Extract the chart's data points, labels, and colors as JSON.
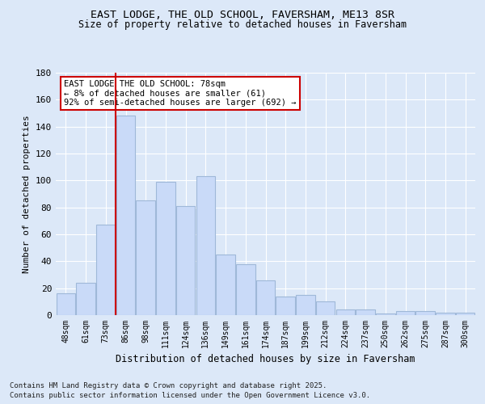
{
  "title_line1": "EAST LODGE, THE OLD SCHOOL, FAVERSHAM, ME13 8SR",
  "title_line2": "Size of property relative to detached houses in Faversham",
  "xlabel": "Distribution of detached houses by size in Faversham",
  "ylabel": "Number of detached properties",
  "categories": [
    "48sqm",
    "61sqm",
    "73sqm",
    "86sqm",
    "98sqm",
    "111sqm",
    "124sqm",
    "136sqm",
    "149sqm",
    "161sqm",
    "174sqm",
    "187sqm",
    "199sqm",
    "212sqm",
    "224sqm",
    "237sqm",
    "250sqm",
    "262sqm",
    "275sqm",
    "287sqm",
    "300sqm"
  ],
  "values": [
    16,
    24,
    67,
    148,
    85,
    99,
    81,
    103,
    45,
    38,
    26,
    14,
    15,
    10,
    4,
    4,
    1,
    3,
    3,
    2,
    2
  ],
  "bar_color": "#c9daf8",
  "bar_edge_color": "#9fb8d8",
  "vline_color": "#cc0000",
  "annotation_text": "EAST LODGE THE OLD SCHOOL: 78sqm\n← 8% of detached houses are smaller (61)\n92% of semi-detached houses are larger (692) →",
  "annotation_box_color": "#ffffff",
  "annotation_box_edge": "#cc0000",
  "ylim": [
    0,
    180
  ],
  "yticks": [
    0,
    20,
    40,
    60,
    80,
    100,
    120,
    140,
    160,
    180
  ],
  "footer_line1": "Contains HM Land Registry data © Crown copyright and database right 2025.",
  "footer_line2": "Contains public sector information licensed under the Open Government Licence v3.0.",
  "background_color": "#dce8f8",
  "plot_bg_color": "#dce8f8"
}
